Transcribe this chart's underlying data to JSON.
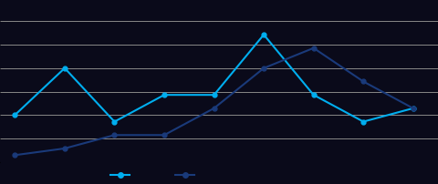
{
  "x_points": [
    0,
    1,
    2,
    3,
    4,
    5,
    6,
    7,
    8
  ],
  "series1_y": [
    3.5,
    7,
    3,
    5,
    5,
    9.5,
    5,
    3,
    4
  ],
  "series2_y": [
    0.5,
    1,
    2,
    2,
    4,
    7,
    8.5,
    6,
    4
  ],
  "series1_color": "#00AEEF",
  "series2_color": "#1A3A7A",
  "background_color": "#0a0a1a",
  "plot_bg_color": "#0a0a1a",
  "grid_color": "#888888",
  "marker": "o",
  "linewidth": 1.5,
  "markersize": 3.5,
  "ylim": [
    0,
    10.5
  ],
  "xlim": [
    -0.3,
    8.5
  ],
  "n_gridlines": 7
}
